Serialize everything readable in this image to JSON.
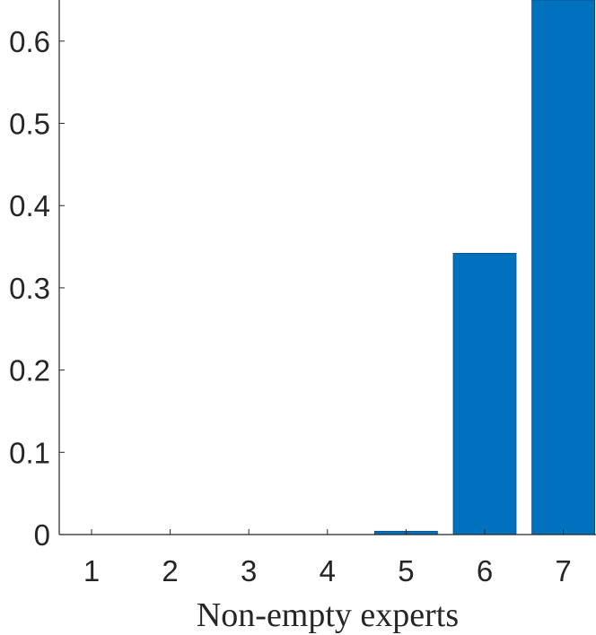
{
  "chart_data": {
    "type": "bar",
    "x_label": "Non-empty experts",
    "categories": [
      "1",
      "2",
      "3",
      "4",
      "5",
      "6",
      "7"
    ],
    "values": [
      0,
      0,
      0,
      0,
      0.004,
      0.342,
      0.65
    ],
    "color": "#0072bd",
    "ylim": [
      0,
      0.65
    ],
    "yticks": [
      0,
      0.1,
      0.2,
      0.3,
      0.4,
      0.5,
      0.6
    ],
    "grid": false
  }
}
